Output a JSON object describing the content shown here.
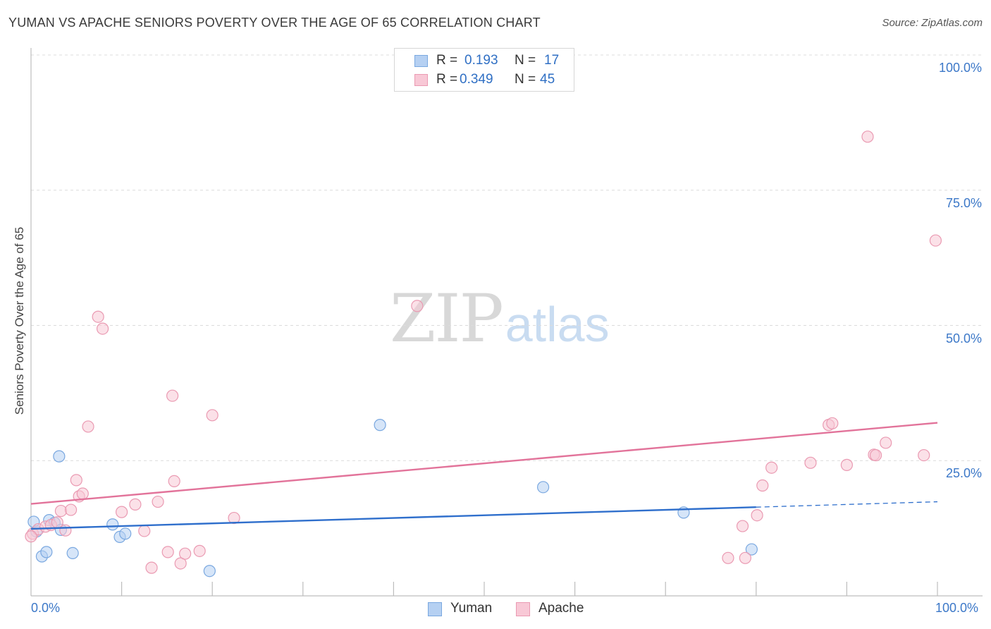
{
  "title": "YUMAN VS APACHE SENIORS POVERTY OVER THE AGE OF 65 CORRELATION CHART",
  "source": "Source: ZipAtlas.com",
  "watermark": {
    "zip": "ZIP",
    "atlas": "atlas"
  },
  "legend": {
    "rows": [
      {
        "r_label": "R =",
        "r_value": "0.193",
        "n_label": "N =",
        "n_value": "17",
        "color": "#b5d0f2",
        "border": "#7aa8e0"
      },
      {
        "r_label": "R =",
        "r_value": "0.349",
        "n_label": "N =",
        "n_value": "45",
        "color": "#f8c8d6",
        "border": "#ea9ab2"
      }
    ]
  },
  "bottom_legend": [
    {
      "label": "Yuman",
      "color": "#b5d0f2",
      "border": "#7aa8e0"
    },
    {
      "label": "Apache",
      "color": "#f8c8d6",
      "border": "#ea9ab2"
    }
  ],
  "chart_data": {
    "type": "scatter",
    "title": "YUMAN VS APACHE SENIORS POVERTY OVER THE AGE OF 65 CORRELATION CHART",
    "xlabel": "",
    "ylabel": "Seniors Poverty Over the Age of 65",
    "xlim": [
      0,
      100
    ],
    "ylim": [
      0,
      100
    ],
    "x_tick_labels": [
      "0.0%",
      "100.0%"
    ],
    "y_tick_labels": [
      "100.0%",
      "75.0%",
      "50.0%",
      "25.0%"
    ],
    "y_tick_values": [
      100,
      75,
      50,
      25
    ],
    "series": [
      {
        "name": "Yuman",
        "color": "#7aa8e0",
        "fill": "#b5d0f2",
        "line_color": "#2f6fcc",
        "trend": {
          "x0": 0,
          "y0": 12.4,
          "x1": 80,
          "y1": 16.4,
          "dash_x1": 100,
          "dash_y1": 17.4
        },
        "points": [
          {
            "x": 0.3,
            "y": 13.7
          },
          {
            "x": 0.6,
            "y": 11.9
          },
          {
            "x": 1.2,
            "y": 7.3
          },
          {
            "x": 1.7,
            "y": 8.1
          },
          {
            "x": 2.0,
            "y": 14.0
          },
          {
            "x": 2.6,
            "y": 13.5
          },
          {
            "x": 3.1,
            "y": 25.8
          },
          {
            "x": 3.3,
            "y": 12.2
          },
          {
            "x": 4.6,
            "y": 7.9
          },
          {
            "x": 9.0,
            "y": 13.2
          },
          {
            "x": 9.8,
            "y": 10.9
          },
          {
            "x": 10.4,
            "y": 11.5
          },
          {
            "x": 19.7,
            "y": 4.6
          },
          {
            "x": 38.5,
            "y": 31.6
          },
          {
            "x": 56.5,
            "y": 20.1
          },
          {
            "x": 72.0,
            "y": 15.4
          },
          {
            "x": 79.5,
            "y": 8.6
          }
        ]
      },
      {
        "name": "Apache",
        "color": "#ea9ab2",
        "fill": "#f8c8d6",
        "line_color": "#e2739a",
        "trend": {
          "x0": 0,
          "y0": 17.0,
          "x1": 100,
          "y1": 32.0
        },
        "points": [
          {
            "x": 0.2,
            "y": 11.5
          },
          {
            "x": 0.8,
            "y": 12.3
          },
          {
            "x": 1.6,
            "y": 12.8
          },
          {
            "x": 2.2,
            "y": 13.1
          },
          {
            "x": 2.9,
            "y": 13.6
          },
          {
            "x": 3.3,
            "y": 15.7
          },
          {
            "x": 3.8,
            "y": 12.1
          },
          {
            "x": 4.4,
            "y": 15.9
          },
          {
            "x": 5.0,
            "y": 21.4
          },
          {
            "x": 5.3,
            "y": 18.4
          },
          {
            "x": 5.7,
            "y": 18.9
          },
          {
            "x": 6.3,
            "y": 31.3
          },
          {
            "x": 7.4,
            "y": 51.6
          },
          {
            "x": 7.9,
            "y": 49.4
          },
          {
            "x": 10.0,
            "y": 15.5
          },
          {
            "x": 11.5,
            "y": 16.9
          },
          {
            "x": 12.5,
            "y": 12.0
          },
          {
            "x": 13.3,
            "y": 5.2
          },
          {
            "x": 14.0,
            "y": 17.4
          },
          {
            "x": 15.1,
            "y": 8.1
          },
          {
            "x": 15.6,
            "y": 37.0
          },
          {
            "x": 15.8,
            "y": 21.2
          },
          {
            "x": 16.5,
            "y": 6.0
          },
          {
            "x": 17.0,
            "y": 7.8
          },
          {
            "x": 18.6,
            "y": 8.3
          },
          {
            "x": 20.0,
            "y": 33.4
          },
          {
            "x": 22.4,
            "y": 14.4
          },
          {
            "x": 42.6,
            "y": 53.6
          },
          {
            "x": 76.9,
            "y": 7.0
          },
          {
            "x": 78.5,
            "y": 12.9
          },
          {
            "x": 78.8,
            "y": 7.0
          },
          {
            "x": 80.1,
            "y": 14.9
          },
          {
            "x": 80.7,
            "y": 20.4
          },
          {
            "x": 81.7,
            "y": 23.7
          },
          {
            "x": 86.0,
            "y": 24.6
          },
          {
            "x": 88.0,
            "y": 31.6
          },
          {
            "x": 88.4,
            "y": 31.9
          },
          {
            "x": 90.0,
            "y": 24.2
          },
          {
            "x": 92.3,
            "y": 84.9
          },
          {
            "x": 93.0,
            "y": 26.1
          },
          {
            "x": 93.2,
            "y": 26.0
          },
          {
            "x": 94.3,
            "y": 28.3
          },
          {
            "x": 98.5,
            "y": 26.0
          },
          {
            "x": 99.8,
            "y": 65.7
          },
          {
            "x": 0.0,
            "y": 11.0
          }
        ]
      }
    ]
  }
}
